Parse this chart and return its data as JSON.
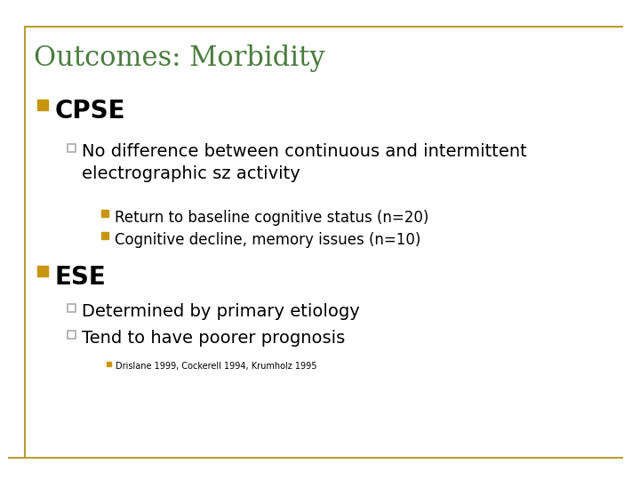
{
  "title": "Outcomes: Morbidity",
  "title_color": "#4a7c3f",
  "title_fontsize": 22,
  "background_color": "#ffffff",
  "border_color": "#b8a030",
  "bullet1_text": "CPSE",
  "bullet1_fontsize": 20,
  "bullet1_marker_color": "#c8960c",
  "sub_bullet1_text": "No difference between continuous and intermittent\nelectrographic sz activity",
  "sub_bullet1_fontsize": 14,
  "sub_bullet1_marker_color": "#aaaaaa",
  "sub_sub_bullet1_text": "Return to baseline cognitive status (n=20)",
  "sub_sub_bullet2_text": "Cognitive decline, memory issues (n=10)",
  "sub_sub_fontsize": 12,
  "sub_sub_marker_color": "#c8960c",
  "bullet2_text": "ESE",
  "bullet2_fontsize": 20,
  "bullet2_marker_color": "#c8960c",
  "sub_bullet2_text": "Determined by primary etiology",
  "sub_bullet3_text": "Tend to have poorer prognosis",
  "sub_bullet23_fontsize": 14,
  "sub_bullet23_marker_color": "#aaaaaa",
  "footnote_text": "Drislane 1999, Cockerell 1994, Krumholz 1995",
  "footnote_fontsize": 7,
  "footnote_marker_color": "#c8960c",
  "text_color": "#000000"
}
